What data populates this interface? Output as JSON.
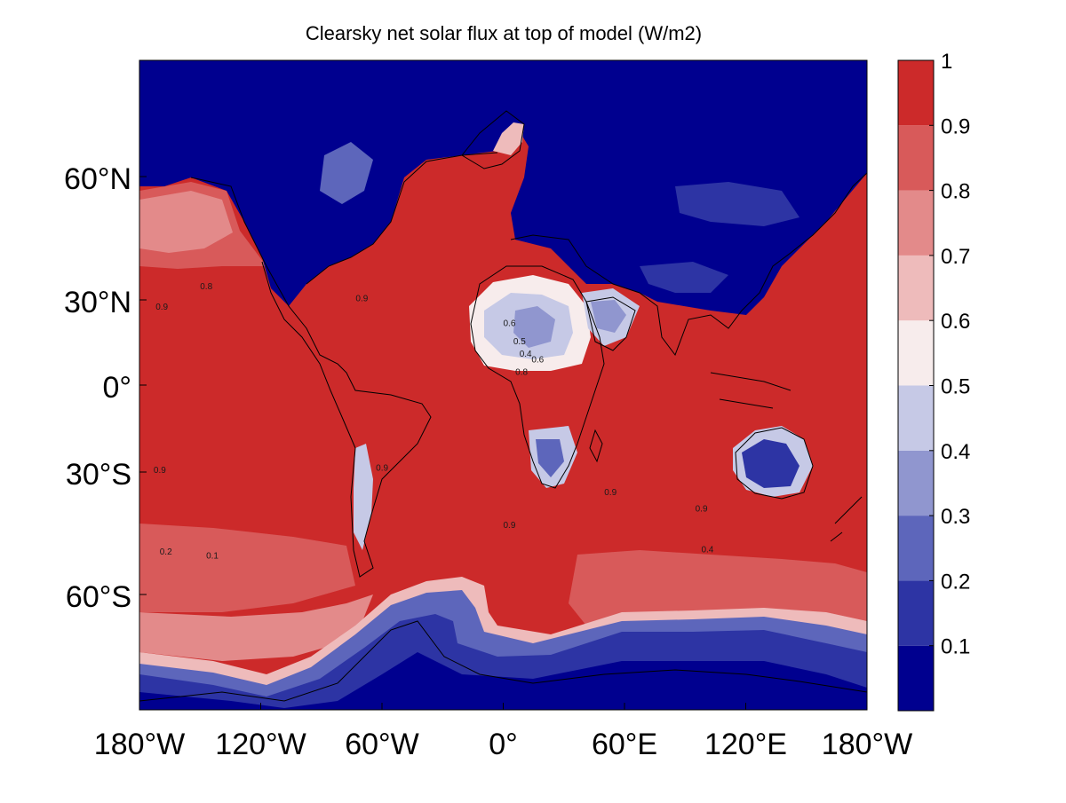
{
  "title": "Clearsky net solar flux at top of model (W/m2)",
  "x_axis": {
    "ticks": [
      "180°W",
      "120°W",
      "60°W",
      "0°",
      "60°E",
      "120°E",
      "180°W"
    ],
    "tick_values": [
      -180,
      -120,
      -60,
      0,
      60,
      120,
      180
    ]
  },
  "y_axis": {
    "ticks": [
      "60°N",
      "30°N",
      "0°",
      "30°S",
      "60°S"
    ],
    "tick_values": [
      60,
      30,
      0,
      -30,
      -60
    ],
    "lat_range": [
      -90,
      90
    ]
  },
  "colorbar": {
    "levels": [
      0,
      0.1,
      0.2,
      0.3,
      0.4,
      0.5,
      0.6,
      0.7,
      0.8,
      0.9,
      1.0
    ],
    "tick_labels": [
      "0.1",
      "0.2",
      "0.3",
      "0.4",
      "0.5",
      "0.6",
      "0.7",
      "0.8",
      "0.9",
      "1"
    ],
    "colors": [
      "#00008f",
      "#2d34a4",
      "#5d66bb",
      "#9096cf",
      "#c6c9e6",
      "#f7ecec",
      "#eebbbb",
      "#e38a8a",
      "#d85a5a",
      "#cc2a2a"
    ]
  },
  "colors": {
    "ocean_high": "#cc2a2a",
    "coastline": "#000000"
  },
  "contour_labels": [
    {
      "text": "0.9",
      "lon": -172,
      "lat": 37
    },
    {
      "text": "0.8",
      "lon": -150,
      "lat": 47
    },
    {
      "text": "0.9",
      "lon": -73,
      "lat": 41
    },
    {
      "text": "0.6",
      "lon": 0,
      "lat": 29
    },
    {
      "text": "0.5",
      "lon": 5,
      "lat": 20
    },
    {
      "text": "0.4",
      "lon": 8,
      "lat": 14
    },
    {
      "text": "0.6",
      "lon": 14,
      "lat": 11
    },
    {
      "text": "0.8",
      "lon": 6,
      "lat": 5
    },
    {
      "text": "0.9",
      "lon": -173,
      "lat": -43
    },
    {
      "text": "0.9",
      "lon": -63,
      "lat": -42
    },
    {
      "text": "0.9",
      "lon": 50,
      "lat": -54
    },
    {
      "text": "0.9",
      "lon": 95,
      "lat": -62
    },
    {
      "text": "0.9",
      "lon": 0,
      "lat": -70
    },
    {
      "text": "0.2",
      "lon": -170,
      "lat": -83
    },
    {
      "text": "0.1",
      "lon": -147,
      "lat": -85
    },
    {
      "text": "0.4",
      "lon": 98,
      "lat": -82
    }
  ]
}
